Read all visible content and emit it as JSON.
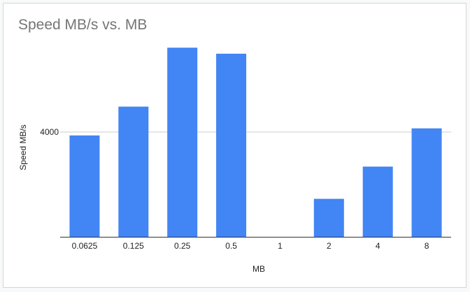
{
  "chart_data": {
    "type": "bar",
    "title": "Speed MB/s vs. MB",
    "xlabel": "MB",
    "ylabel": "Speed MB/s",
    "categories": [
      "0.0625",
      "0.125",
      "0.25",
      "0.5",
      "1",
      "2",
      "4",
      "8"
    ],
    "values": [
      3870,
      4970,
      7220,
      6990,
      0,
      1450,
      2680,
      4140
    ],
    "yticks": [
      4000
    ],
    "ylim": [
      0,
      8000
    ],
    "grid": true,
    "legend": "none",
    "bar_color": "#4285f4",
    "grid_color": "#cccccc",
    "axis_color": "#333333"
  }
}
